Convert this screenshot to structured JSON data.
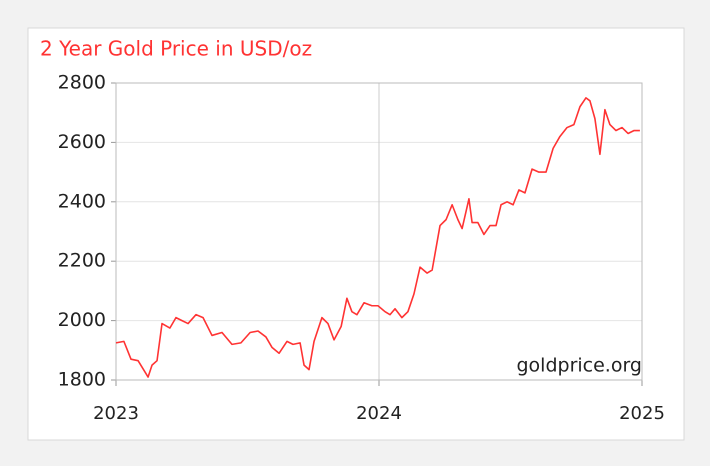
{
  "chart_data": {
    "type": "line",
    "title": "2 Year Gold Price in USD/oz",
    "annotation": "goldprice.org",
    "color": "#ff3333",
    "x": [
      2023.0,
      2023.03,
      2023.057,
      2023.084,
      2023.122,
      2023.137,
      2023.156,
      2023.175,
      2023.205,
      2023.228,
      2023.251,
      2023.274,
      2023.304,
      2023.331,
      2023.365,
      2023.403,
      2023.441,
      2023.475,
      2023.51,
      2023.54,
      2023.57,
      2023.593,
      2023.62,
      2023.65,
      2023.673,
      2023.7,
      2023.715,
      2023.734,
      2023.753,
      2023.783,
      2023.806,
      2023.829,
      2023.856,
      2023.878,
      2023.897,
      2023.916,
      2023.943,
      2023.973,
      2023.996,
      2024.023,
      2024.042,
      2024.061,
      2024.087,
      2024.11,
      2024.133,
      2024.156,
      2024.183,
      2024.202,
      2024.232,
      2024.255,
      2024.278,
      2024.3,
      2024.316,
      2024.342,
      2024.354,
      2024.376,
      2024.399,
      2024.422,
      2024.445,
      2024.464,
      2024.487,
      2024.51,
      2024.532,
      2024.555,
      2024.582,
      2024.608,
      2024.635,
      2024.662,
      2024.688,
      2024.715,
      2024.741,
      2024.764,
      2024.787,
      2024.802,
      2024.821,
      2024.84,
      2024.859,
      2024.878,
      2024.901,
      2024.924,
      2024.947,
      2024.97,
      2024.992
    ],
    "values": [
      1925,
      1930,
      1870,
      1865,
      1810,
      1850,
      1865,
      1990,
      1975,
      2010,
      2000,
      1990,
      2020,
      2010,
      1950,
      1960,
      1920,
      1925,
      1960,
      1965,
      1945,
      1910,
      1890,
      1930,
      1920,
      1925,
      1850,
      1835,
      1930,
      2010,
      1990,
      1935,
      1980,
      2075,
      2030,
      2020,
      2060,
      2050,
      2050,
      2030,
      2020,
      2040,
      2010,
      2030,
      2090,
      2180,
      2160,
      2170,
      2320,
      2340,
      2390,
      2340,
      2310,
      2410,
      2330,
      2330,
      2290,
      2320,
      2320,
      2390,
      2400,
      2390,
      2440,
      2430,
      2510,
      2500,
      2500,
      2580,
      2620,
      2650,
      2660,
      2720,
      2750,
      2740,
      2680,
      2560,
      2710,
      2660,
      2640,
      2650,
      2630,
      2640,
      2640
    ],
    "xlim": [
      2023,
      2025
    ],
    "xticks": [
      2023,
      2024,
      2025
    ],
    "ylim": [
      1800,
      2800
    ],
    "yticks": [
      1800,
      2000,
      2200,
      2400,
      2600,
      2800
    ],
    "grid": true
  }
}
